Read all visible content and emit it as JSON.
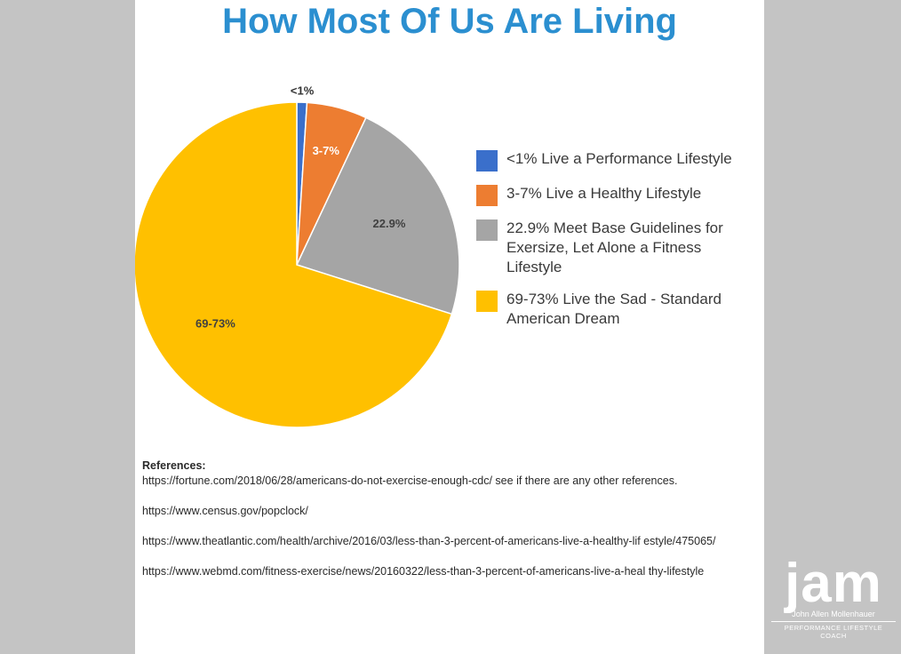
{
  "chart_data": {
    "type": "pie",
    "title": "How Most Of Us Are Living",
    "slices": [
      {
        "label": "<1%",
        "value": 1,
        "color": "#3a6fcb",
        "legend": "<1% Live a Performance Lifestyle"
      },
      {
        "label": "3-7%",
        "value": 6,
        "color": "#ed7d31",
        "legend": "3-7% Live a Healthy Lifestyle"
      },
      {
        "label": "22.9%",
        "value": 22.9,
        "color": "#a5a5a5",
        "legend": "22.9% Meet Base Guidelines for Exersize, Let Alone a Fitness Lifestyle"
      },
      {
        "label": "69-73%",
        "value": 70.1,
        "color": "#ffc000",
        "legend": "69-73% Live the Sad - Standard American Dream"
      }
    ],
    "legend_position": "right"
  },
  "references": {
    "heading": "References:",
    "items": [
      "https://fortune.com/2018/06/28/americans-do-not-exercise-enough-cdc/ see if there are any other references.",
      "https://www.census.gov/popclock/",
      "https://www.theatlantic.com/health/archive/2016/03/less-than-3-percent-of-americans-live-a-healthy-lif estyle/475065/",
      "https://www.webmd.com/fitness-exercise/news/20160322/less-than-3-percent-of-americans-live-a-heal thy-lifestyle"
    ]
  },
  "brand": {
    "word": "jam",
    "name": "John Allen Mollenhauer",
    "role": "PERFORMANCE LIFESTYLE COACH"
  }
}
